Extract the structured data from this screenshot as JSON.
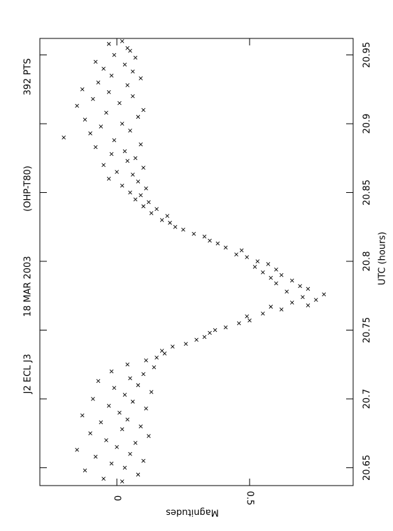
{
  "chart_data": {
    "type": "scatter",
    "texts": [
      "J2 ECL J3",
      "18 MAR 2003",
      "(OHP-T80)",
      "392 PTS"
    ],
    "x_label": "UTC (hours)",
    "y_label": "Magnitudes",
    "xlim": [
      20.637,
      20.962
    ],
    "xticks": [
      20.65,
      20.7,
      20.75,
      20.8,
      20.85,
      20.9,
      20.95
    ],
    "ylim": [
      -0.29,
      0.89
    ],
    "yticks": [
      0,
      0.5
    ],
    "color": "#000000",
    "x": [
      20.64,
      20.642,
      20.645,
      20.648,
      20.65,
      20.653,
      20.655,
      20.658,
      20.66,
      20.663,
      20.665,
      20.668,
      20.67,
      20.673,
      20.675,
      20.678,
      20.68,
      20.683,
      20.685,
      20.688,
      20.69,
      20.693,
      20.695,
      20.698,
      20.7,
      20.703,
      20.705,
      20.708,
      20.71,
      20.713,
      20.715,
      20.718,
      20.72,
      20.723,
      20.725,
      20.728,
      20.73,
      20.733,
      20.735,
      20.738,
      20.74,
      20.743,
      20.745,
      20.748,
      20.75,
      20.752,
      20.755,
      20.757,
      20.76,
      20.762,
      20.765,
      20.767,
      20.768,
      20.77,
      20.772,
      20.774,
      20.776,
      20.778,
      20.78,
      20.782,
      20.784,
      20.786,
      20.788,
      20.79,
      20.792,
      20.794,
      20.796,
      20.798,
      20.8,
      20.803,
      20.805,
      20.808,
      20.81,
      20.813,
      20.815,
      20.818,
      20.82,
      20.823,
      20.825,
      20.828,
      20.83,
      20.833,
      20.835,
      20.838,
      20.84,
      20.843,
      20.845,
      20.848,
      20.85,
      20.853,
      20.855,
      20.858,
      20.86,
      20.863,
      20.865,
      20.868,
      20.87,
      20.873,
      20.875,
      20.878,
      20.88,
      20.883,
      20.885,
      20.888,
      20.89,
      20.893,
      20.895,
      20.898,
      20.9,
      20.903,
      20.905,
      20.908,
      20.91,
      20.913,
      20.915,
      20.918,
      20.92,
      20.923,
      20.925,
      20.928,
      20.93,
      20.933,
      20.935,
      20.938,
      20.94,
      20.943,
      20.945,
      20.948,
      20.95,
      20.953,
      20.955,
      20.958,
      20.96
    ],
    "values": [
      0.02,
      -0.05,
      0.08,
      -0.12,
      0.03,
      -0.02,
      0.1,
      -0.08,
      0.05,
      -0.15,
      0.0,
      0.07,
      -0.04,
      0.12,
      -0.1,
      0.02,
      0.09,
      -0.06,
      0.04,
      -0.13,
      0.01,
      0.11,
      -0.03,
      0.06,
      -0.09,
      0.03,
      0.13,
      -0.01,
      0.08,
      -0.07,
      0.05,
      0.1,
      -0.02,
      0.14,
      0.04,
      0.11,
      0.15,
      0.18,
      0.17,
      0.21,
      0.26,
      0.3,
      0.33,
      0.35,
      0.37,
      0.41,
      0.46,
      0.5,
      0.49,
      0.55,
      0.62,
      0.58,
      0.72,
      0.66,
      0.75,
      0.7,
      0.78,
      0.64,
      0.72,
      0.69,
      0.6,
      0.66,
      0.58,
      0.62,
      0.55,
      0.6,
      0.52,
      0.57,
      0.53,
      0.49,
      0.45,
      0.47,
      0.41,
      0.38,
      0.35,
      0.33,
      0.29,
      0.25,
      0.22,
      0.2,
      0.17,
      0.19,
      0.13,
      0.15,
      0.1,
      0.12,
      0.07,
      0.09,
      0.05,
      0.11,
      0.02,
      0.08,
      -0.03,
      0.06,
      0.0,
      0.1,
      -0.05,
      0.04,
      0.07,
      -0.02,
      0.03,
      -0.08,
      0.09,
      -0.01,
      -0.2,
      -0.1,
      0.05,
      -0.06,
      0.02,
      -0.12,
      0.08,
      -0.04,
      0.1,
      -0.15,
      0.01,
      -0.09,
      0.06,
      -0.03,
      -0.13,
      0.04,
      -0.07,
      0.09,
      -0.02,
      0.06,
      -0.05,
      0.03,
      -0.08,
      0.07,
      -0.01,
      0.05,
      0.04,
      -0.03,
      0.02
    ]
  }
}
